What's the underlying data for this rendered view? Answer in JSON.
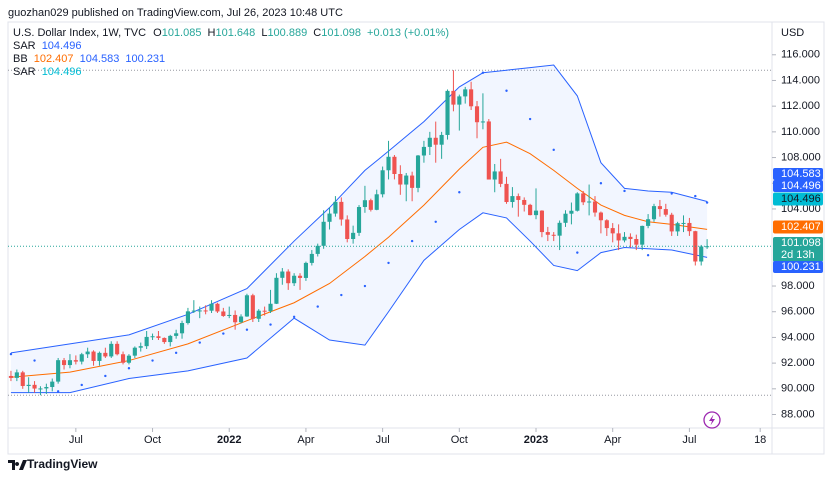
{
  "chart_data": {
    "type": "candlestick",
    "publisher": "guozhan029 published on TradingView.com, Jul 26, 2023 10:48 UTC",
    "symbol": "U.S. Dollar Index, 1W, TVC",
    "ohlc_prefixes": [
      "O",
      "H",
      "L",
      "C"
    ],
    "change": "+0.013 (+0.01%)",
    "sar_label": "SAR",
    "bb_label": "BB",
    "currency": "USD",
    "countdown": "2d 13h",
    "brand": "TradingView",
    "up_color": "#26a69a",
    "down_color": "#ef5350",
    "band_color": "#2962ff",
    "middle_color": "#ff6d00",
    "sar_color": "#2962ff",
    "xlim": [
      -0.5,
      129
    ],
    "ylim": [
      86.95,
      117.15
    ],
    "yticks": [
      {
        "value": 88,
        "label": "88.000"
      },
      {
        "value": 90,
        "label": "90.000"
      },
      {
        "value": 92,
        "label": "92.000"
      },
      {
        "value": 94,
        "label": "94.000"
      },
      {
        "value": 96,
        "label": "96.000"
      },
      {
        "value": 98,
        "label": "98.000"
      },
      {
        "value": 104,
        "label": "104.000"
      },
      {
        "value": 106,
        "label": "106.000"
      },
      {
        "value": 108,
        "label": "108.000"
      },
      {
        "value": 110,
        "label": "110.000"
      },
      {
        "value": 112,
        "label": "112.000"
      },
      {
        "value": 114,
        "label": "114.000"
      },
      {
        "value": 116,
        "label": "116.000"
      }
    ],
    "xticks": [
      {
        "value": 11,
        "label": "Jul"
      },
      {
        "value": 24,
        "label": "Oct"
      },
      {
        "value": 37,
        "label": "2022"
      },
      {
        "value": 50,
        "label": "Apr"
      },
      {
        "value": 63,
        "label": "Jul"
      },
      {
        "value": 76,
        "label": "Oct"
      },
      {
        "value": 89,
        "label": "2023"
      },
      {
        "value": 102,
        "label": "Apr"
      },
      {
        "value": 115,
        "label": "Jul"
      },
      {
        "value": 127,
        "label": "18"
      }
    ],
    "range_high": 114.8,
    "range_low": 89.5,
    "candles": [
      [
        91.0,
        91.4,
        90.6,
        90.85
      ],
      [
        90.85,
        91.5,
        90.6,
        91.28
      ],
      [
        91.28,
        91.4,
        90.0,
        90.22
      ],
      [
        90.22,
        90.9,
        89.7,
        90.31
      ],
      [
        90.31,
        90.6,
        89.7,
        90.02
      ],
      [
        90.02,
        90.2,
        89.5,
        90.03
      ],
      [
        90.03,
        90.4,
        89.6,
        90.14
      ],
      [
        90.14,
        90.8,
        89.8,
        90.56
      ],
      [
        90.56,
        92.4,
        90.4,
        92.23
      ],
      [
        92.23,
        92.4,
        91.5,
        91.85
      ],
      [
        91.85,
        92.7,
        91.6,
        92.23
      ],
      [
        92.23,
        92.6,
        91.9,
        92.12
      ],
      [
        92.12,
        92.8,
        91.9,
        92.69
      ],
      [
        92.69,
        93.2,
        92.4,
        92.9
      ],
      [
        92.9,
        93.0,
        91.8,
        92.17
      ],
      [
        92.17,
        92.9,
        91.8,
        92.8
      ],
      [
        92.8,
        93.2,
        92.4,
        92.52
      ],
      [
        92.52,
        93.7,
        92.4,
        93.5
      ],
      [
        93.5,
        93.7,
        92.6,
        92.69
      ],
      [
        92.69,
        92.9,
        91.9,
        92.03
      ],
      [
        92.03,
        92.7,
        91.9,
        92.58
      ],
      [
        92.58,
        93.3,
        92.4,
        93.2
      ],
      [
        93.2,
        93.6,
        92.9,
        93.32
      ],
      [
        93.32,
        94.5,
        93.1,
        94.04
      ],
      [
        94.04,
        94.3,
        93.8,
        94.09
      ],
      [
        94.09,
        94.5,
        93.8,
        93.96
      ],
      [
        93.96,
        94.0,
        93.5,
        93.64
      ],
      [
        93.64,
        94.2,
        93.3,
        94.12
      ],
      [
        94.12,
        94.6,
        93.9,
        94.32
      ],
      [
        94.32,
        95.3,
        93.9,
        95.12
      ],
      [
        95.12,
        96.3,
        95.0,
        96.03
      ],
      [
        96.03,
        96.9,
        95.9,
        96.09
      ],
      [
        96.09,
        96.4,
        95.5,
        96.1
      ],
      [
        96.1,
        96.5,
        95.8,
        96.08
      ],
      [
        96.08,
        96.9,
        95.9,
        96.62
      ],
      [
        96.62,
        96.7,
        95.9,
        96.02
      ],
      [
        96.02,
        96.3,
        95.6,
        95.67
      ],
      [
        95.67,
        96.4,
        95.5,
        95.75
      ],
      [
        95.75,
        96.1,
        94.6,
        95.18
      ],
      [
        95.18,
        95.8,
        95.1,
        95.63
      ],
      [
        95.63,
        97.4,
        95.6,
        97.28
      ],
      [
        97.28,
        97.4,
        95.2,
        95.45
      ],
      [
        95.45,
        96.2,
        95.2,
        96.08
      ],
      [
        96.08,
        96.4,
        95.7,
        96.04
      ],
      [
        96.04,
        97.7,
        95.9,
        96.62
      ],
      [
        96.62,
        99.0,
        96.6,
        98.64
      ],
      [
        98.64,
        99.4,
        98.1,
        99.13
      ],
      [
        99.13,
        99.3,
        97.7,
        98.22
      ],
      [
        98.22,
        99.0,
        98.0,
        98.8
      ],
      [
        98.8,
        99.0,
        97.7,
        98.63
      ],
      [
        98.63,
        99.9,
        98.4,
        99.8
      ],
      [
        99.8,
        100.8,
        99.6,
        100.5
      ],
      [
        100.5,
        101.3,
        100.3,
        101.13
      ],
      [
        101.13,
        103.9,
        100.9,
        103.0
      ],
      [
        103.0,
        104.1,
        102.4,
        103.64
      ],
      [
        103.64,
        105.0,
        103.4,
        104.55
      ],
      [
        104.55,
        104.9,
        102.7,
        103.18
      ],
      [
        103.18,
        103.5,
        101.4,
        101.66
      ],
      [
        101.66,
        102.7,
        101.3,
        102.14
      ],
      [
        102.14,
        104.3,
        101.9,
        104.15
      ],
      [
        104.15,
        105.8,
        103.7,
        104.68
      ],
      [
        104.68,
        104.8,
        103.8,
        103.93
      ],
      [
        103.93,
        105.5,
        103.9,
        105.14
      ],
      [
        105.14,
        107.3,
        104.9,
        107.01
      ],
      [
        107.01,
        109.3,
        106.3,
        108.06
      ],
      [
        108.06,
        108.2,
        106.3,
        106.72
      ],
      [
        106.72,
        107.4,
        105.1,
        105.9
      ],
      [
        105.9,
        106.8,
        104.6,
        106.6
      ],
      [
        106.6,
        106.9,
        104.6,
        105.64
      ],
      [
        105.64,
        108.2,
        105.3,
        108.16
      ],
      [
        108.16,
        109.3,
        107.6,
        108.83
      ],
      [
        108.83,
        110.0,
        108.2,
        109.54
      ],
      [
        109.54,
        110.8,
        107.6,
        109.0
      ],
      [
        109.0,
        110.0,
        107.9,
        109.76
      ],
      [
        109.76,
        113.3,
        109.4,
        113.19
      ],
      [
        113.19,
        114.8,
        111.6,
        112.12
      ],
      [
        112.12,
        112.9,
        110.1,
        112.76
      ],
      [
        112.76,
        113.5,
        112.2,
        113.31
      ],
      [
        113.31,
        113.9,
        111.7,
        111.99
      ],
      [
        111.99,
        112.4,
        109.5,
        110.75
      ],
      [
        110.75,
        113.0,
        110.2,
        110.81
      ],
      [
        110.81,
        111.0,
        106.3,
        106.29
      ],
      [
        106.29,
        107.5,
        105.3,
        106.92
      ],
      [
        106.92,
        107.9,
        105.7,
        105.95
      ],
      [
        105.95,
        106.5,
        104.4,
        104.54
      ],
      [
        104.54,
        105.7,
        104.1,
        105.0
      ],
      [
        105.0,
        105.2,
        103.4,
        104.7
      ],
      [
        104.7,
        104.9,
        103.8,
        104.32
      ],
      [
        104.32,
        104.4,
        103.5,
        103.52
      ],
      [
        103.52,
        105.6,
        103.2,
        103.87
      ],
      [
        103.87,
        103.9,
        101.8,
        102.2
      ],
      [
        102.2,
        102.6,
        101.5,
        101.99
      ],
      [
        101.99,
        102.2,
        101.5,
        101.92
      ],
      [
        101.92,
        103.1,
        100.8,
        102.92
      ],
      [
        102.92,
        103.9,
        102.6,
        103.63
      ],
      [
        103.63,
        104.5,
        102.8,
        103.86
      ],
      [
        103.86,
        105.3,
        103.8,
        105.21
      ],
      [
        105.21,
        105.4,
        104.3,
        104.52
      ],
      [
        104.52,
        105.9,
        103.5,
        104.58
      ],
      [
        104.58,
        105.0,
        103.4,
        103.72
      ],
      [
        103.72,
        103.8,
        102.1,
        103.12
      ],
      [
        103.12,
        103.2,
        101.9,
        102.51
      ],
      [
        102.51,
        102.9,
        101.4,
        102.1
      ],
      [
        102.1,
        102.8,
        100.8,
        101.55
      ],
      [
        101.55,
        102.2,
        101.4,
        101.83
      ],
      [
        101.83,
        102.1,
        101.0,
        101.66
      ],
      [
        101.66,
        102.0,
        100.8,
        101.22
      ],
      [
        101.22,
        102.7,
        100.8,
        102.68
      ],
      [
        102.68,
        103.6,
        102.5,
        103.2
      ],
      [
        103.2,
        104.4,
        103.0,
        104.22
      ],
      [
        104.22,
        104.7,
        103.4,
        103.99
      ],
      [
        103.99,
        104.4,
        103.4,
        103.55
      ],
      [
        103.55,
        103.7,
        101.9,
        102.25
      ],
      [
        102.25,
        103.0,
        101.9,
        102.89
      ],
      [
        102.89,
        103.5,
        102.2,
        102.91
      ],
      [
        102.91,
        103.3,
        101.9,
        102.27
      ],
      [
        102.27,
        102.3,
        99.6,
        99.91
      ],
      [
        99.91,
        101.2,
        99.6,
        101.08
      ],
      [
        101.085,
        101.648,
        100.889,
        101.098
      ]
    ],
    "bands": {
      "x": [
        0,
        10,
        20,
        30,
        40,
        48,
        54,
        60,
        64,
        70,
        76,
        80,
        84,
        88,
        92,
        96,
        100,
        104,
        108,
        112,
        118
      ],
      "upper": [
        92.8,
        93.5,
        94.2,
        95.8,
        97.8,
        101.5,
        104.1,
        107,
        108.5,
        110.8,
        113.5,
        114.6,
        114.8,
        115,
        115.2,
        112.8,
        107.6,
        105.6,
        105.4,
        105.3,
        104.583
      ],
      "middle": [
        90.9,
        91.3,
        92.2,
        93.5,
        95.3,
        96.7,
        98.2,
        100.3,
        101.8,
        104.3,
        107.1,
        108.8,
        109.2,
        108.3,
        107,
        105.6,
        104.3,
        103.5,
        103,
        102.8,
        102.407
      ],
      "lower": [
        89.7,
        89.7,
        90.8,
        91.4,
        92.4,
        95.5,
        93.8,
        93.4,
        96,
        100,
        102.4,
        103.7,
        103.3,
        101.5,
        99.6,
        99.2,
        100.6,
        101,
        100.9,
        100.8,
        100.231
      ]
    },
    "sar": {
      "x": [
        0,
        4,
        8,
        12,
        16,
        20,
        24,
        28,
        32,
        36,
        40,
        44,
        48,
        52,
        56,
        60,
        64,
        68,
        72,
        76,
        80,
        84,
        88,
        92,
        96,
        100,
        104,
        108,
        112,
        116,
        118
      ],
      "values": [
        92.7,
        92.2,
        89.8,
        90.3,
        91.0,
        91.6,
        92.2,
        92.8,
        93.6,
        94.3,
        94.6,
        95.0,
        95.6,
        96.4,
        97.3,
        98.0,
        99.8,
        101.5,
        103.0,
        105.3,
        114.6,
        113.2,
        111.0,
        108.6,
        100.6,
        106.0,
        105.4,
        100.4,
        105.2,
        105.0,
        104.496
      ]
    }
  }
}
